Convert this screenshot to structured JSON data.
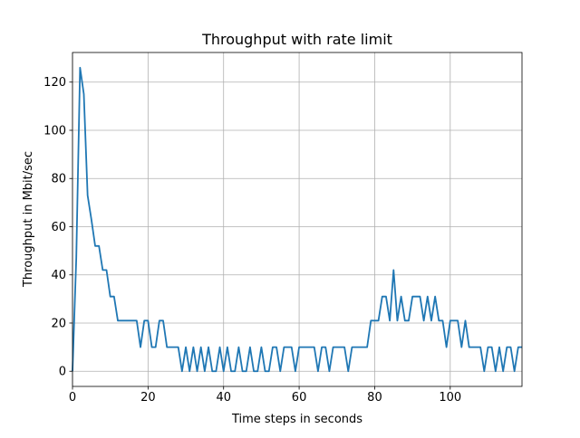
{
  "chart_data": {
    "type": "line",
    "title": "Throughput with rate limit",
    "xlabel": "Time steps in seconds",
    "ylabel": "Throughput in Mbit/sec",
    "xlim": [
      0,
      119
    ],
    "ylim": [
      -6.3,
      132.3
    ],
    "xticks": [
      0,
      20,
      40,
      60,
      80,
      100
    ],
    "yticks": [
      0,
      20,
      40,
      60,
      80,
      100,
      120
    ],
    "grid": true,
    "line_color": "#1f77b4",
    "series": [
      {
        "x": [
          0,
          1,
          2,
          3,
          4,
          5,
          6,
          7,
          8,
          9,
          10,
          11,
          12,
          13,
          14,
          15,
          16,
          17,
          18,
          19,
          20,
          21,
          22,
          23,
          24,
          25,
          26,
          27,
          28,
          29,
          30,
          31,
          32,
          33,
          34,
          35,
          36,
          37,
          38,
          39,
          40,
          41,
          42,
          43,
          44,
          45,
          46,
          47,
          48,
          49,
          50,
          51,
          52,
          53,
          54,
          55,
          56,
          57,
          58,
          59,
          60,
          61,
          62,
          63,
          64,
          65,
          66,
          67,
          68,
          69,
          70,
          71,
          72,
          73,
          74,
          75,
          76,
          77,
          78,
          79,
          80,
          81,
          82,
          83,
          84,
          85,
          86,
          87,
          88,
          89,
          90,
          91,
          92,
          93,
          94,
          95,
          96,
          97,
          98,
          99,
          100,
          101,
          102,
          103,
          104,
          105,
          106,
          107,
          108,
          109,
          110,
          111,
          112,
          113,
          114,
          115,
          116,
          117,
          118,
          119
        ],
        "values": [
          0,
          47,
          126,
          115,
          73,
          63,
          52,
          52,
          42,
          42,
          31,
          31,
          21,
          21,
          21,
          21,
          21,
          21,
          10,
          21,
          21,
          10,
          10,
          21,
          21,
          10,
          10,
          10,
          10,
          0,
          10,
          0,
          10,
          0,
          10,
          0,
          10,
          0,
          0,
          10,
          0,
          10,
          0,
          0,
          10,
          0,
          0,
          10,
          0,
          0,
          10,
          0,
          0,
          10,
          10,
          0,
          10,
          10,
          10,
          0,
          10,
          10,
          10,
          10,
          10,
          0,
          10,
          10,
          0,
          10,
          10,
          10,
          10,
          0,
          10,
          10,
          10,
          10,
          10,
          21,
          21,
          21,
          31,
          31,
          21,
          42,
          21,
          31,
          21,
          21,
          31,
          31,
          31,
          21,
          31,
          21,
          31,
          21,
          21,
          10,
          21,
          21,
          21,
          10,
          21,
          10,
          10,
          10,
          10,
          0,
          10,
          10,
          0,
          10,
          0,
          10,
          10,
          0,
          10,
          10
        ]
      }
    ]
  }
}
